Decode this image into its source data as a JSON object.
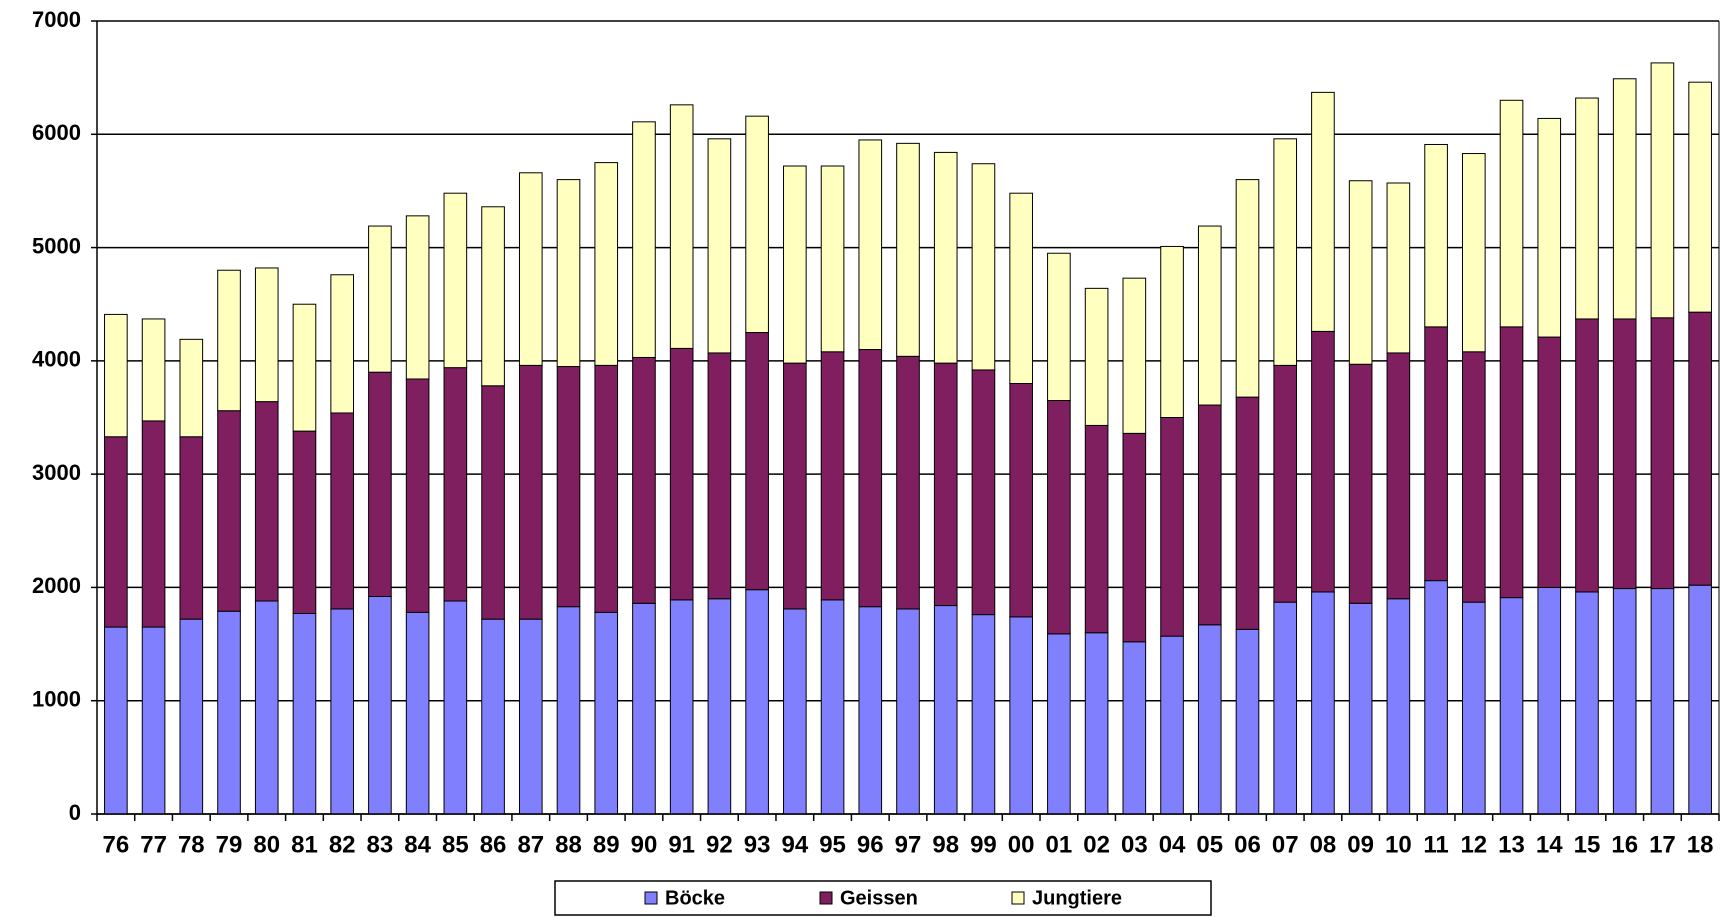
{
  "chart_data": {
    "type": "stacked-bar",
    "categories": [
      "76",
      "77",
      "78",
      "79",
      "80",
      "81",
      "82",
      "83",
      "84",
      "85",
      "86",
      "87",
      "88",
      "89",
      "90",
      "91",
      "92",
      "93",
      "94",
      "95",
      "96",
      "97",
      "98",
      "99",
      "00",
      "01",
      "02",
      "03",
      "04",
      "05",
      "06",
      "07",
      "08",
      "09",
      "10",
      "11",
      "12",
      "13",
      "14",
      "15",
      "16",
      "17",
      "18"
    ],
    "series": [
      {
        "name": "Böcke",
        "color": "#8080ff",
        "values": [
          1650,
          1650,
          1720,
          1790,
          1880,
          1770,
          1810,
          1920,
          1780,
          1880,
          1720,
          1720,
          1830,
          1780,
          1860,
          1890,
          1900,
          1980,
          1810,
          1890,
          1830,
          1810,
          1840,
          1760,
          1740,
          1590,
          1600,
          1520,
          1570,
          1670,
          1630,
          1870,
          1960,
          1860,
          1900,
          2060,
          1870,
          1910,
          2000,
          1960,
          1990,
          1990,
          2020
        ]
      },
      {
        "name": "Geissen",
        "color": "#7f1f5f",
        "values": [
          1680,
          1820,
          1610,
          1770,
          1760,
          1610,
          1730,
          1980,
          2060,
          2060,
          2060,
          2240,
          2120,
          2180,
          2170,
          2220,
          2170,
          2270,
          2170,
          2190,
          2270,
          2230,
          2140,
          2160,
          2060,
          2060,
          1830,
          1840,
          1930,
          1940,
          2050,
          2090,
          2300,
          2110,
          2170,
          2240,
          2210,
          2390,
          2210,
          2410,
          2380,
          2390,
          2410
        ]
      },
      {
        "name": "Jungtiere",
        "color": "#ffffc0",
        "values": [
          1080,
          900,
          860,
          1240,
          1180,
          1120,
          1220,
          1290,
          1440,
          1540,
          1580,
          1700,
          1650,
          1790,
          2080,
          2150,
          1890,
          1910,
          1740,
          1640,
          1850,
          1880,
          1860,
          1820,
          1680,
          1300,
          1210,
          1370,
          1510,
          1580,
          1920,
          2000,
          2110,
          1620,
          1500,
          1610,
          1750,
          2000,
          1930,
          1950,
          2120,
          2250,
          2030
        ]
      }
    ],
    "ylim": [
      0,
      7000
    ],
    "yticks": [
      0,
      1000,
      2000,
      3000,
      4000,
      5000,
      6000,
      7000
    ],
    "grid": true,
    "legend": "bottom"
  }
}
